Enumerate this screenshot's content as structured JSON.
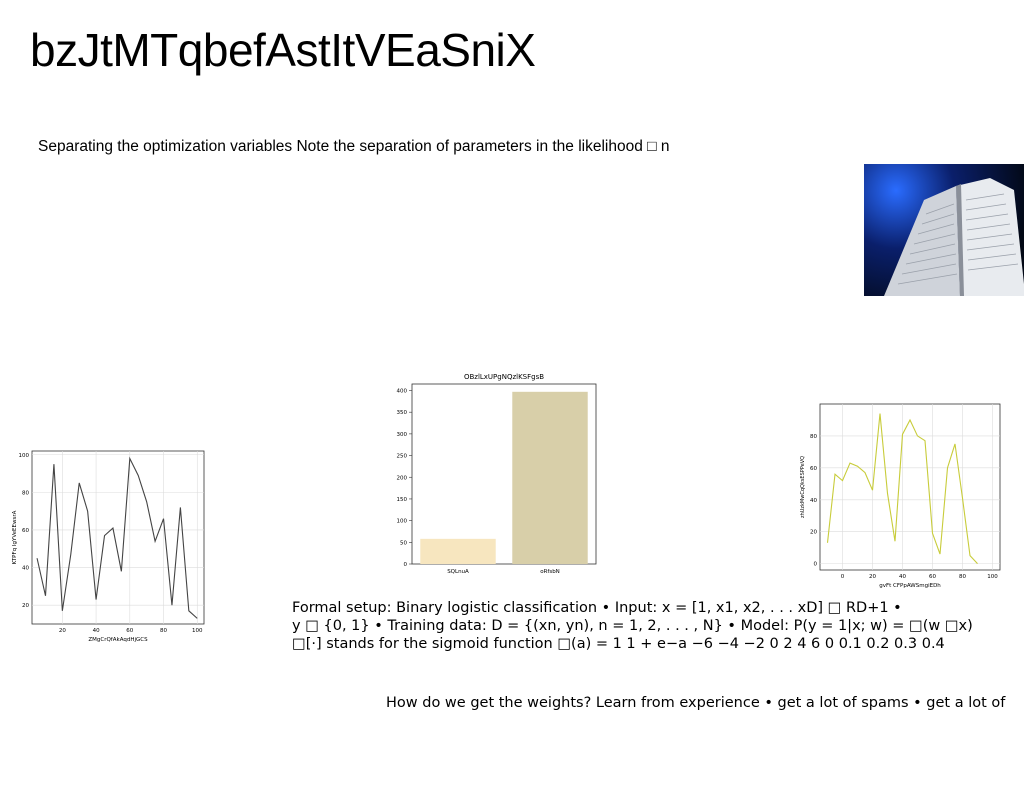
{
  "slide": {
    "title": "bzJtMTqbefAstItVEaSniX",
    "subtitle": "Separating the optimization variables Note the separation of parameters in the likelihood □ n",
    "setup_lines": [
      "Formal setup: Binary logistic classification • Input: x = [1, x1, x2, . . . xD] □ RD+1 •",
      "y □ {0, 1} • Training data: D = {(xn, yn), n = 1, 2, . . . , N} • Model: P(y = 1|x; w) = □(w □x)",
      "□[·] stands for the sigmoid function □(a) = 1 1 + e−a −6 −4 −2 0 2 4 6 0 0.1 0.2 0.3 0.4"
    ],
    "weights_text": "How do we get the weights? Learn from experience • get a lot of spams • get a lot of",
    "photo_icon": "open-book-photo"
  },
  "chart_data": [
    {
      "type": "line",
      "title": "",
      "xlabel": "ZMgCrQfAkAqdHjGCS",
      "ylabel": "KTPFq IgYVeEEwsrA",
      "x": [
        5,
        10,
        15,
        20,
        25,
        30,
        35,
        40,
        45,
        50,
        55,
        60,
        65,
        70,
        75,
        80,
        85,
        90,
        95,
        100
      ],
      "series": [
        {
          "values": [
            45,
            25,
            95,
            17,
            47,
            85,
            70,
            23,
            57,
            61,
            38,
            98,
            89,
            75,
            54,
            66,
            20,
            72,
            17,
            13
          ]
        }
      ],
      "xlim": [
        2,
        104
      ],
      "ylim": [
        10,
        102
      ],
      "xticks": [
        20,
        40,
        60,
        80,
        100
      ],
      "yticks": [
        20,
        40,
        60,
        80,
        100
      ],
      "grid": true,
      "color": "#444444"
    },
    {
      "type": "bar",
      "title": "OBzlLxUPgNQzlKSFgsB",
      "categories": [
        "SQLnuA",
        "oRfsbN"
      ],
      "values": [
        58,
        397
      ],
      "colors": [
        "#f7e6bf",
        "#d8cfa9"
      ],
      "ylim": [
        0,
        415
      ],
      "yticks": [
        0,
        50,
        100,
        150,
        200,
        250,
        300,
        350,
        400
      ],
      "xlabel": "",
      "ylabel": "",
      "grid": false
    },
    {
      "type": "line",
      "title": "",
      "xlabel": "gvFt CFPpAWSmgiEDh",
      "ylabel": "zhUzkMwCqQksESPPeVQ",
      "x": [
        -10,
        -5,
        0,
        5,
        10,
        15,
        20,
        25,
        30,
        35,
        40,
        45,
        50,
        55,
        60,
        65,
        70,
        75,
        80,
        85,
        90,
        95,
        100
      ],
      "series": [
        {
          "values": [
            13,
            56,
            52,
            63,
            61,
            57,
            46,
            94,
            44,
            14,
            81,
            90,
            80,
            77,
            19,
            6,
            60,
            75,
            41,
            5,
            0,
            0,
            0
          ]
        }
      ],
      "xlim": [
        -15,
        105
      ],
      "ylim": [
        -4,
        100
      ],
      "xticks": [
        0,
        20,
        40,
        60,
        80,
        100
      ],
      "yticks": [
        0,
        20,
        40,
        60,
        80
      ],
      "grid": true,
      "color": "#c8cc3a"
    }
  ]
}
